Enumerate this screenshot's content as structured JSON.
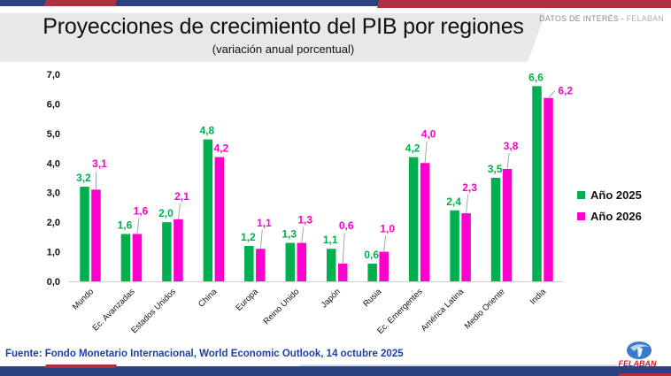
{
  "header": {
    "title": "Proyecciones de crecimiento del PIB por regiones",
    "subtitle": "(variación anual porcentual)",
    "tag_prefix": "DATOS DE INTERÉS - ",
    "tag_brand": "FELABAN"
  },
  "footer": {
    "source": "Fuente: Fondo Monetario Internacional, World Economic Outlook, 14 octubre 2025",
    "logo_text": "FELABAN"
  },
  "colors": {
    "navy": "#2a4281",
    "red": "#b0303f",
    "green": "#00b050",
    "magenta": "#ff00cc",
    "header_gray": "#e8e8e8",
    "source_blue": "#1f3fa8"
  },
  "chart_data": {
    "type": "bar",
    "title": "Proyecciones de crecimiento del PIB por regiones",
    "subtitle": "(variación anual porcentual)",
    "xlabel": "",
    "ylabel": "",
    "ylim": [
      0,
      7
    ],
    "yticks": [
      0,
      1,
      2,
      3,
      4,
      5,
      6,
      7
    ],
    "ytick_labels": [
      "0,0",
      "1,0",
      "2,0",
      "3,0",
      "4,0",
      "5,0",
      "6,0",
      "7,0"
    ],
    "grid": false,
    "legend_position": "right",
    "categories": [
      "Mundo",
      "Ec. Avanzadas",
      "Estados Unidos",
      "China",
      "Europa",
      "Reino Unido",
      "Japón",
      "Rusia",
      "Ec. Emergentes",
      "América Latina",
      "Medio Oriente",
      "India"
    ],
    "series": [
      {
        "name": "Año 2025",
        "color": "#00b050",
        "values": [
          3.2,
          1.6,
          2.0,
          4.8,
          1.2,
          1.3,
          1.1,
          0.6,
          4.2,
          2.4,
          3.5,
          6.6
        ],
        "labels": [
          "3,2",
          "1,6",
          "2,0",
          "4,8",
          "1,2",
          "1,3",
          "1,1",
          "0,6",
          "4,2",
          "2,4",
          "3,5",
          "6,6"
        ]
      },
      {
        "name": "Año 2026",
        "color": "#ff00cc",
        "values": [
          3.1,
          1.6,
          2.1,
          4.2,
          1.1,
          1.3,
          0.6,
          1.0,
          4.0,
          2.3,
          3.8,
          6.2
        ],
        "labels": [
          "3,1",
          "1,6",
          "2,1",
          "4,2",
          "1,1",
          "1,3",
          "0,6",
          "1,0",
          "4,0",
          "2,3",
          "3,8",
          "6,2"
        ]
      }
    ]
  }
}
